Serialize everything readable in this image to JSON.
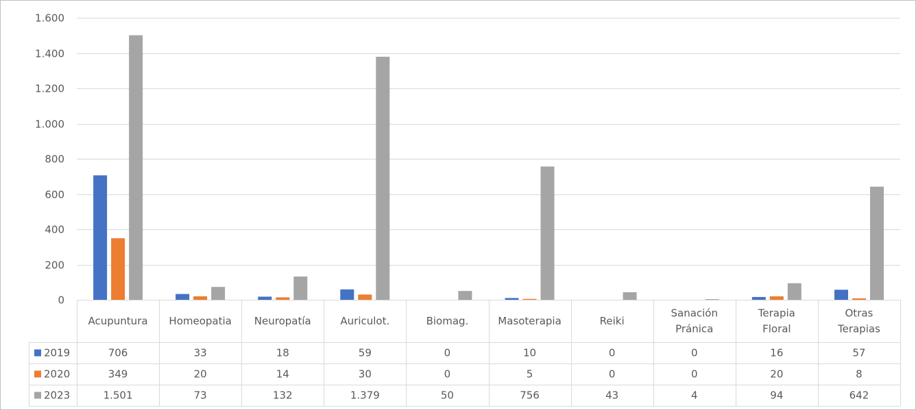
{
  "chart_data": {
    "type": "bar",
    "categories": [
      [
        "Acupuntura"
      ],
      [
        "Homeopatia"
      ],
      [
        "Neuropatía"
      ],
      [
        "Auriculot."
      ],
      [
        "Biomag."
      ],
      [
        "Masoterapia"
      ],
      [
        "Reiki"
      ],
      [
        "Sanación",
        "Pránica"
      ],
      [
        "Terapia",
        "Floral"
      ],
      [
        "Otras",
        "Terapias"
      ]
    ],
    "series": [
      {
        "name": "2019",
        "color": "#4472c4",
        "values": [
          706,
          33,
          18,
          59,
          0,
          10,
          0,
          0,
          16,
          57
        ],
        "labels": [
          "706",
          "33",
          "18",
          "59",
          "0",
          "10",
          "0",
          "0",
          "16",
          "57"
        ]
      },
      {
        "name": "2020",
        "color": "#ed7d31",
        "values": [
          349,
          20,
          14,
          30,
          0,
          5,
          0,
          0,
          20,
          8
        ],
        "labels": [
          "349",
          "20",
          "14",
          "30",
          "0",
          "5",
          "0",
          "0",
          "20",
          "8"
        ]
      },
      {
        "name": "2023",
        "color": "#a5a5a5",
        "values": [
          1501,
          73,
          132,
          1379,
          50,
          756,
          43,
          4,
          94,
          642
        ],
        "labels": [
          "1.501",
          "73",
          "132",
          "1.379",
          "50",
          "756",
          "43",
          "4",
          "94",
          "642"
        ]
      }
    ],
    "ylim": [
      0,
      1600
    ],
    "yticks": [
      0,
      200,
      400,
      600,
      800,
      1000,
      1200,
      1400,
      1600
    ],
    "ytick_labels": [
      "0",
      "200",
      "400",
      "600",
      "800",
      "1.000",
      "1.200",
      "1.400",
      "1.600"
    ],
    "grid": true,
    "legend": "data-table",
    "data_table": true,
    "title": "",
    "xlabel": "",
    "ylabel": ""
  }
}
